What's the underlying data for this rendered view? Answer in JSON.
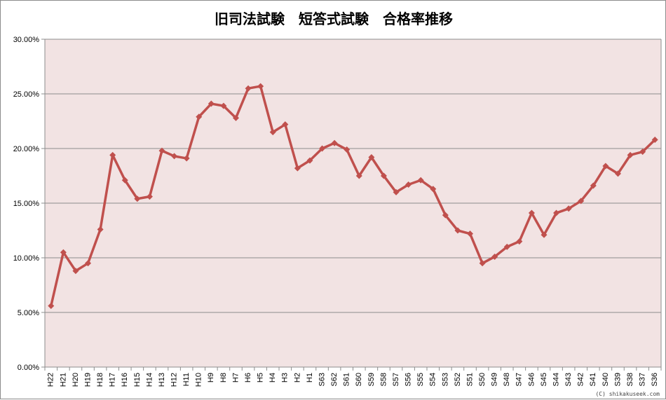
{
  "chart_data": {
    "type": "line",
    "title": "旧司法試験　短答式試験　合格率推移",
    "xlabel": "",
    "ylabel": "",
    "ylim": [
      0,
      30
    ],
    "ytick_labels": [
      "0.00%",
      "5.00%",
      "10.00%",
      "15.00%",
      "20.00%",
      "25.00%",
      "30.00%"
    ],
    "grid": true,
    "legend": "none",
    "colors": {
      "series": "#c0504d",
      "plot_bg": "#f2e3e3",
      "gridline": "#8c8c8c"
    },
    "categories": [
      "H22",
      "H21",
      "H20",
      "H19",
      "H18",
      "H17",
      "H16",
      "H15",
      "H14",
      "H13",
      "H12",
      "H11",
      "H10",
      "H9",
      "H8",
      "H7",
      "H6",
      "H5",
      "H4",
      "H3",
      "H2",
      "H1",
      "S63",
      "S62",
      "S61",
      "S60",
      "S59",
      "S58",
      "S57",
      "S56",
      "S55",
      "S54",
      "S53",
      "S52",
      "S51",
      "S50",
      "S49",
      "S48",
      "S47",
      "S46",
      "S45",
      "S44",
      "S43",
      "S42",
      "S41",
      "S40",
      "S39",
      "S38",
      "S37",
      "S36"
    ],
    "series": [
      {
        "values": [
          5.6,
          10.5,
          8.8,
          9.5,
          12.6,
          19.4,
          17.1,
          15.4,
          15.6,
          19.8,
          19.3,
          19.1,
          22.9,
          24.1,
          23.9,
          22.8,
          25.5,
          25.7,
          21.5,
          22.2,
          18.2,
          18.9,
          20.0,
          20.5,
          19.9,
          17.5,
          19.2,
          17.5,
          16.0,
          16.7,
          17.1,
          16.3,
          13.9,
          12.5,
          12.2,
          9.5,
          10.1,
          11.0,
          11.5,
          14.1,
          12.1,
          14.1,
          14.5,
          15.2,
          16.6,
          18.4,
          17.7,
          19.4,
          19.7,
          20.8
        ]
      }
    ]
  },
  "credit_text": "(C) shikakuseek.com"
}
